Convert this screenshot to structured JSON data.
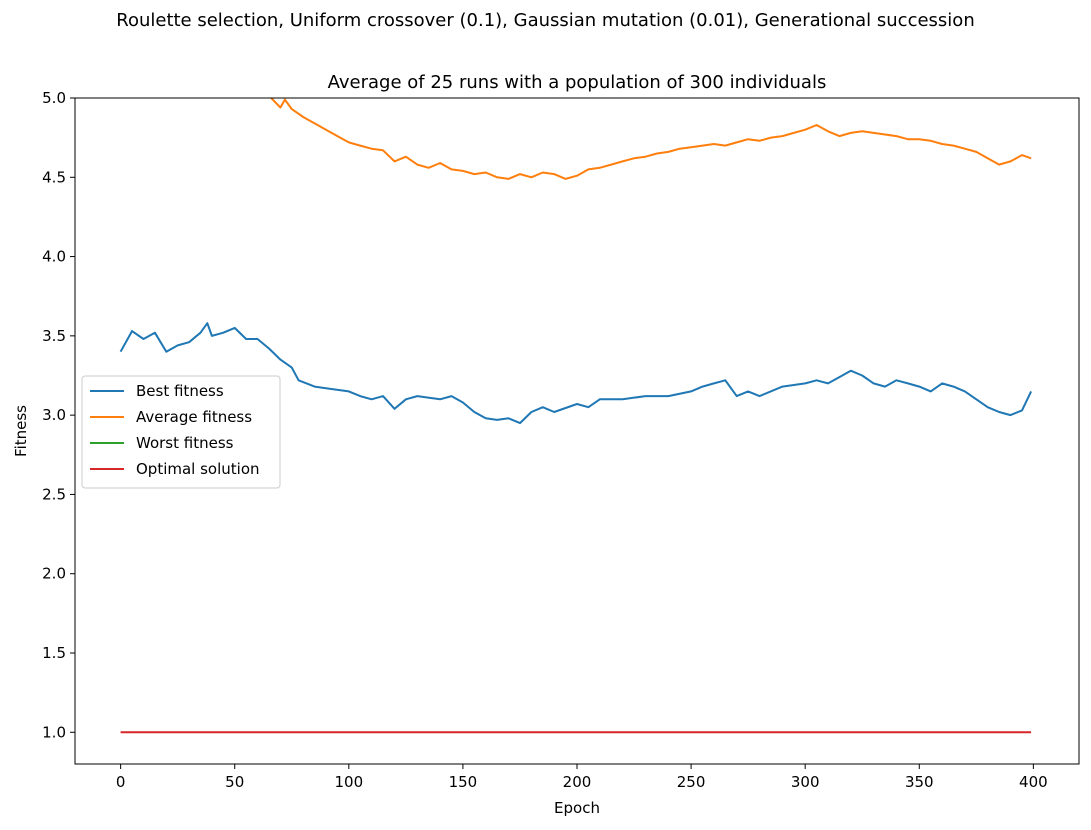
{
  "suptitle": "Roulette selection, Uniform crossover (0.1), Gaussian mutation (0.01), Generational succession",
  "chart_data": {
    "type": "line",
    "title": "Average of 25 runs with a population of 300 individuals",
    "xlabel": "Epoch",
    "ylabel": "Fitness",
    "xlim": [
      -20,
      420
    ],
    "ylim": [
      0.8,
      5.0
    ],
    "xticks": [
      0,
      50,
      100,
      150,
      200,
      250,
      300,
      350,
      400
    ],
    "yticks": [
      1.0,
      1.5,
      2.0,
      2.5,
      3.0,
      3.5,
      4.0,
      4.5,
      5.0
    ],
    "grid": false,
    "legend_position": "center-left",
    "series": [
      {
        "name": "Best fitness",
        "color": "#1f77b4",
        "x": [
          0,
          5,
          10,
          15,
          20,
          25,
          30,
          35,
          38,
          40,
          45,
          50,
          55,
          60,
          65,
          70,
          75,
          78,
          85,
          90,
          100,
          105,
          110,
          115,
          120,
          125,
          130,
          140,
          145,
          150,
          155,
          160,
          165,
          170,
          175,
          180,
          185,
          190,
          200,
          205,
          210,
          220,
          230,
          240,
          250,
          255,
          260,
          265,
          270,
          275,
          280,
          290,
          300,
          305,
          310,
          315,
          320,
          325,
          330,
          335,
          340,
          345,
          350,
          355,
          360,
          365,
          370,
          375,
          380,
          385,
          390,
          395,
          399
        ],
        "y": [
          3.4,
          3.53,
          3.48,
          3.52,
          3.4,
          3.44,
          3.46,
          3.52,
          3.58,
          3.5,
          3.52,
          3.55,
          3.48,
          3.48,
          3.42,
          3.35,
          3.3,
          3.22,
          3.18,
          3.17,
          3.15,
          3.12,
          3.1,
          3.12,
          3.04,
          3.1,
          3.12,
          3.1,
          3.12,
          3.08,
          3.02,
          2.98,
          2.97,
          2.98,
          2.95,
          3.02,
          3.05,
          3.02,
          3.07,
          3.05,
          3.1,
          3.1,
          3.12,
          3.12,
          3.15,
          3.18,
          3.2,
          3.22,
          3.12,
          3.15,
          3.12,
          3.18,
          3.2,
          3.22,
          3.2,
          3.24,
          3.28,
          3.25,
          3.2,
          3.18,
          3.22,
          3.2,
          3.18,
          3.15,
          3.2,
          3.18,
          3.15,
          3.1,
          3.05,
          3.02,
          3.0,
          3.03,
          3.15
        ]
      },
      {
        "name": "Average fitness",
        "color": "#ff7f0e",
        "x": [
          66,
          70,
          72,
          75,
          80,
          85,
          90,
          95,
          100,
          105,
          110,
          115,
          120,
          125,
          130,
          135,
          140,
          145,
          150,
          155,
          160,
          165,
          170,
          175,
          180,
          185,
          190,
          195,
          200,
          205,
          210,
          215,
          220,
          225,
          230,
          235,
          240,
          245,
          250,
          255,
          260,
          265,
          270,
          275,
          280,
          285,
          290,
          295,
          300,
          305,
          310,
          315,
          320,
          325,
          330,
          335,
          340,
          345,
          350,
          355,
          360,
          365,
          370,
          375,
          380,
          385,
          390,
          395,
          399
        ],
        "y": [
          5.0,
          4.94,
          4.99,
          4.93,
          4.88,
          4.84,
          4.8,
          4.76,
          4.72,
          4.7,
          4.68,
          4.67,
          4.6,
          4.63,
          4.58,
          4.56,
          4.59,
          4.55,
          4.54,
          4.52,
          4.53,
          4.5,
          4.49,
          4.52,
          4.5,
          4.53,
          4.52,
          4.49,
          4.51,
          4.55,
          4.56,
          4.58,
          4.6,
          4.62,
          4.63,
          4.65,
          4.66,
          4.68,
          4.69,
          4.7,
          4.71,
          4.7,
          4.72,
          4.74,
          4.73,
          4.75,
          4.76,
          4.78,
          4.8,
          4.83,
          4.79,
          4.76,
          4.78,
          4.79,
          4.78,
          4.77,
          4.76,
          4.74,
          4.74,
          4.73,
          4.71,
          4.7,
          4.68,
          4.66,
          4.62,
          4.58,
          4.6,
          4.64,
          4.62
        ]
      },
      {
        "name": "Worst fitness",
        "color": "#2ca02c",
        "x": [],
        "y": []
      },
      {
        "name": "Optimal solution",
        "color": "#d62728",
        "x": [
          0,
          399
        ],
        "y": [
          1.0,
          1.0
        ]
      }
    ]
  }
}
